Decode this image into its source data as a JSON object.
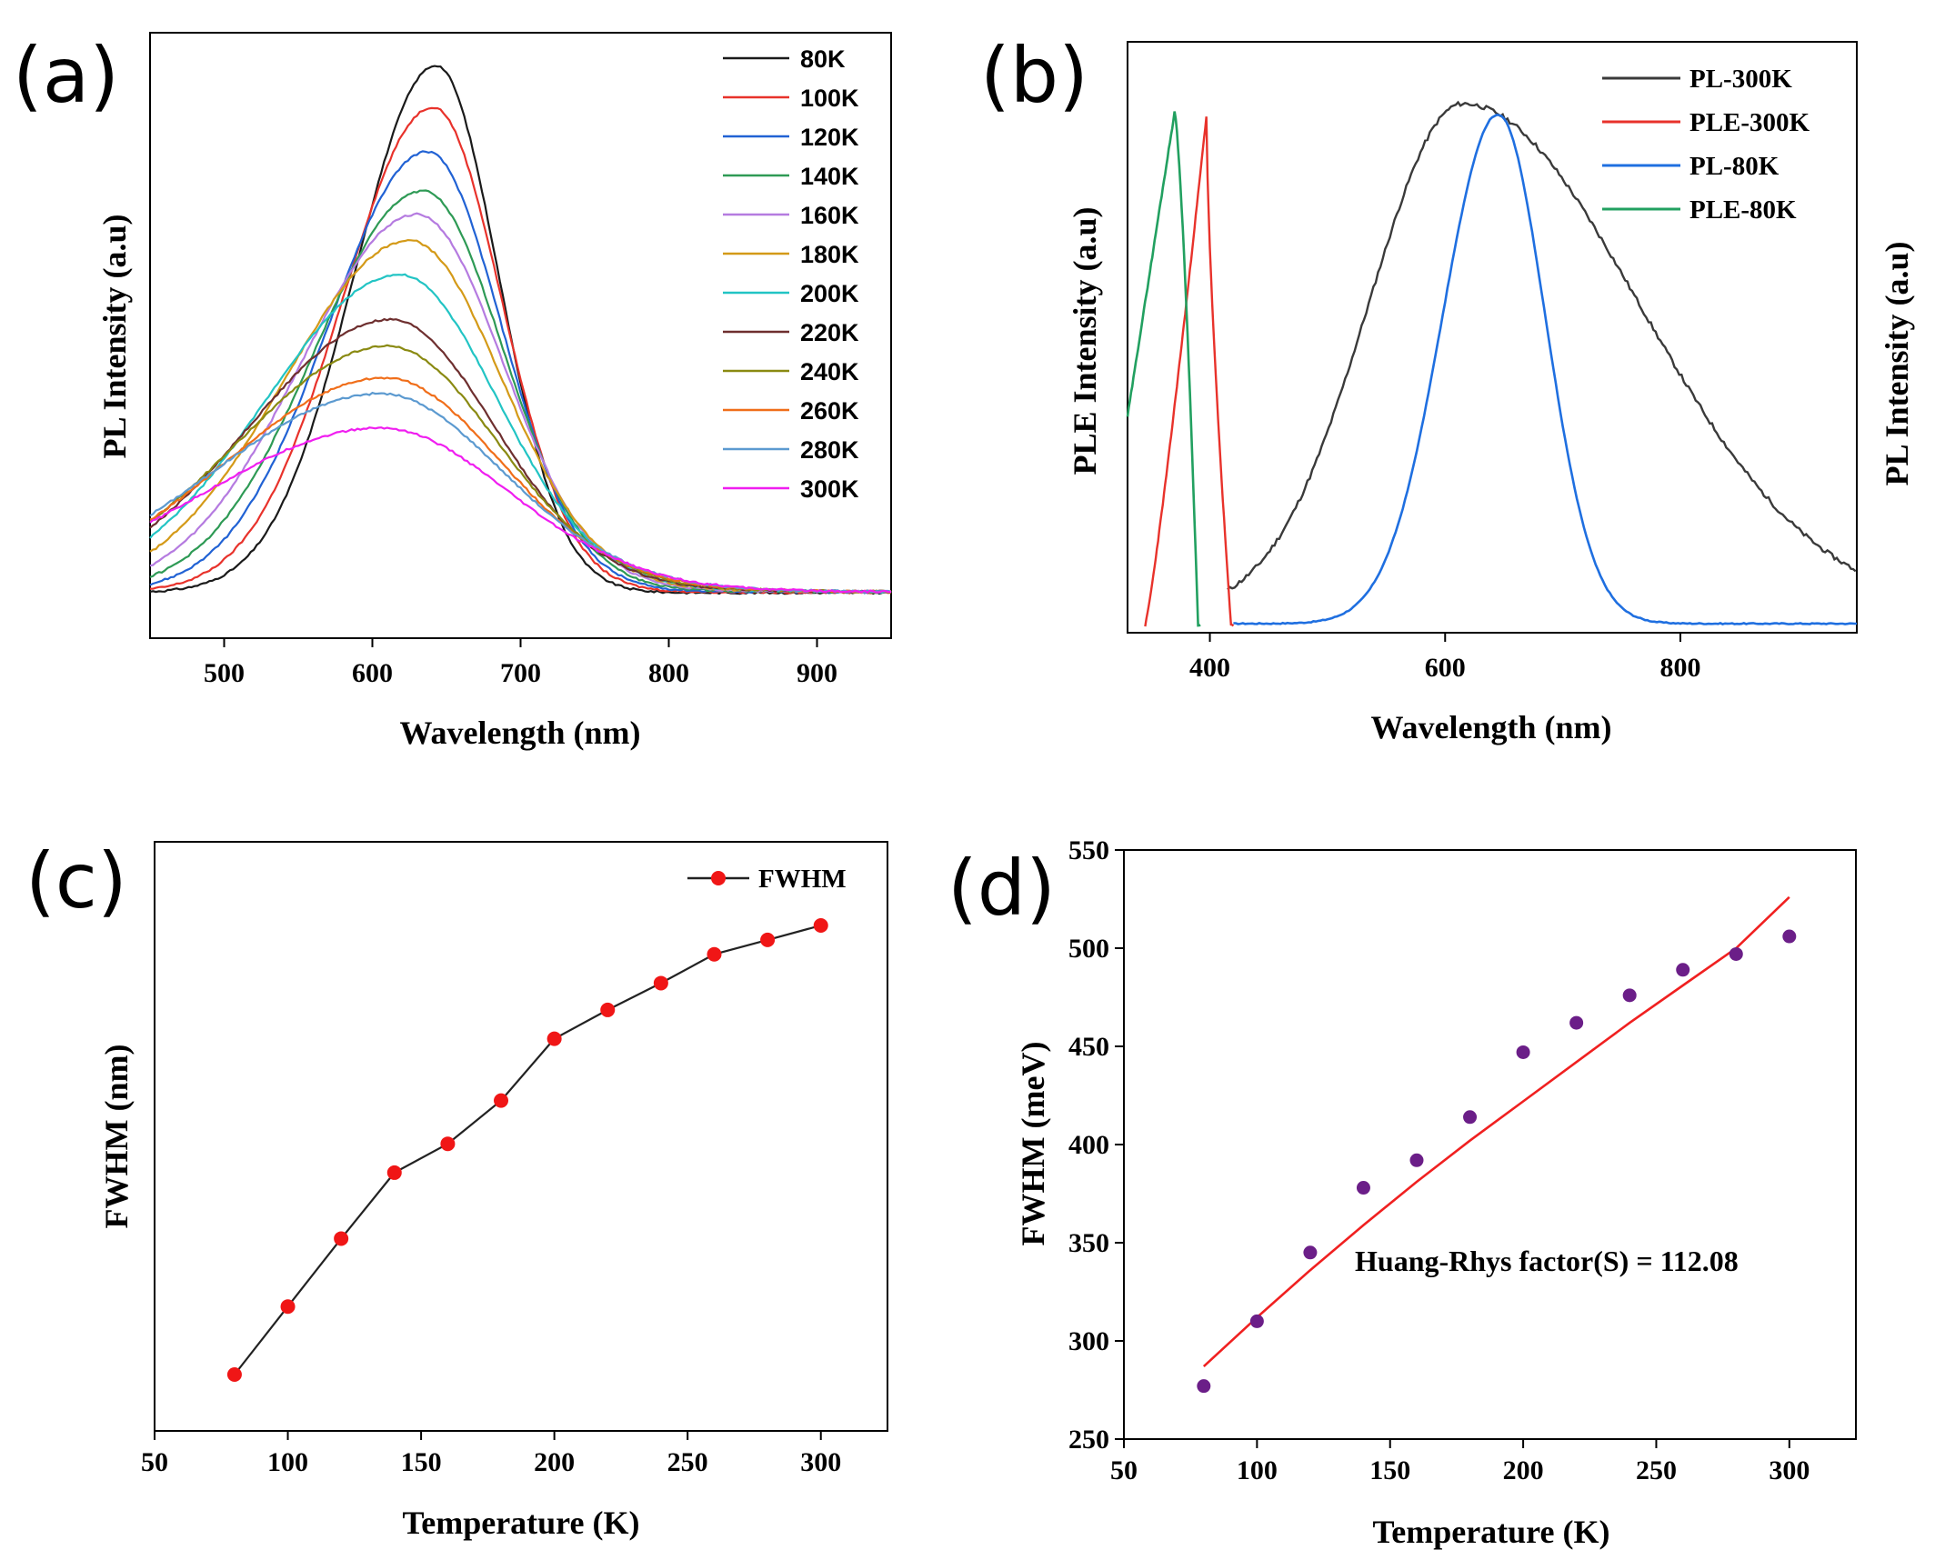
{
  "panels": {
    "a": {
      "label": "(a)"
    },
    "b": {
      "label": "(b)"
    },
    "c": {
      "label": "(c)"
    },
    "d": {
      "label": "(d)"
    }
  },
  "colors": {
    "80K": "#1a1a1a",
    "100K": "#e8322b",
    "120K": "#2162d4",
    "140K": "#2e9a55",
    "160K": "#b57be0",
    "180K": "#d49a18",
    "200K": "#22c4c4",
    "220K": "#6e2f2f",
    "240K": "#8a8a12",
    "260K": "#f06e1a",
    "280K": "#5c9ad0",
    "300K": "#f01ef0",
    "pl300": "#3a3a3a",
    "ple300": "#e8322b",
    "pl80": "#1f6fe0",
    "ple80": "#22a060",
    "fwhm_point": "#f01616",
    "fwhm_line": "#222222",
    "fit_point": "#6b1e88",
    "fit_line": "#f02020"
  },
  "chart_data": [
    {
      "type": "line",
      "title": "",
      "xlabel": "Wavelength (nm)",
      "ylabel": "PL Intensity  (a.u)",
      "xlim": [
        450,
        950
      ],
      "xticks": [
        "500",
        "600",
        "700",
        "800",
        "900"
      ],
      "legend_position": "top-right",
      "series": [
        {
          "name": "80K",
          "peak_nm": 643,
          "rel_height": 1.0
        },
        {
          "name": "100K",
          "peak_nm": 641,
          "rel_height": 0.92
        },
        {
          "name": "120K",
          "peak_nm": 637,
          "rel_height": 0.835
        },
        {
          "name": "140K",
          "peak_nm": 634,
          "rel_height": 0.76
        },
        {
          "name": "160K",
          "peak_nm": 630,
          "rel_height": 0.715
        },
        {
          "name": "180K",
          "peak_nm": 625,
          "rel_height": 0.665
        },
        {
          "name": "200K",
          "peak_nm": 618,
          "rel_height": 0.6
        },
        {
          "name": "220K",
          "peak_nm": 612,
          "rel_height": 0.515
        },
        {
          "name": "240K",
          "peak_nm": 610,
          "rel_height": 0.465
        },
        {
          "name": "260K",
          "peak_nm": 608,
          "rel_height": 0.405
        },
        {
          "name": "280K",
          "peak_nm": 605,
          "rel_height": 0.375
        },
        {
          "name": "300K",
          "peak_nm": 605,
          "rel_height": 0.31
        }
      ]
    },
    {
      "type": "line",
      "title": "",
      "xlabel": "Wavelength (nm)",
      "ylabel_left": "PLE Intensity  (a.u)",
      "ylabel_right": "PL Intensity  (a.u)",
      "xlim": [
        330,
        950
      ],
      "xticks": [
        "400",
        "600",
        "800"
      ],
      "legend_position": "top-right",
      "series": [
        {
          "name": "PL-300K",
          "peak_nm": 610
        },
        {
          "name": "PLE-300K",
          "peak_nm": 397
        },
        {
          "name": "PL-80K",
          "peak_nm": 645
        },
        {
          "name": "PLE-80K",
          "peak_nm": 370
        }
      ]
    },
    {
      "type": "line",
      "title": "",
      "xlabel": "Temperature (K)",
      "ylabel": "FWHM (nm)",
      "xlim": [
        50,
        325
      ],
      "xticks": [
        "50",
        "100",
        "150",
        "200",
        "250",
        "300"
      ],
      "legend_position": "top-right",
      "series": [
        {
          "name": "FWHM",
          "x": [
            80,
            100,
            120,
            140,
            160,
            180,
            200,
            220,
            240,
            260,
            280,
            300
          ],
          "y": [
            277,
            310,
            343,
            375,
            389,
            410,
            440,
            454,
            467,
            481,
            488,
            495
          ]
        }
      ]
    },
    {
      "type": "scatter",
      "title": "",
      "xlabel": "Temperature (K)",
      "ylabel": "FWHM (meV)",
      "xlim": [
        50,
        325
      ],
      "ylim": [
        250,
        550
      ],
      "xticks": [
        "50",
        "100",
        "150",
        "200",
        "250",
        "300"
      ],
      "yticks": [
        "250",
        "300",
        "350",
        "400",
        "450",
        "500",
        "550"
      ],
      "annotation": "Huang-Rhys factor(S) = 112.08",
      "points": {
        "x": [
          80,
          100,
          120,
          140,
          160,
          180,
          200,
          220,
          240,
          260,
          280,
          300
        ],
        "y": [
          277,
          310,
          345,
          378,
          392,
          414,
          447,
          462,
          476,
          489,
          497,
          506
        ]
      },
      "fit": {
        "x": [
          80,
          100,
          120,
          140,
          160,
          180,
          200,
          220,
          240,
          260,
          280,
          300
        ],
        "y": [
          287,
          312,
          336,
          359,
          381,
          402,
          422,
          442,
          462,
          481,
          500,
          526
        ]
      }
    }
  ]
}
